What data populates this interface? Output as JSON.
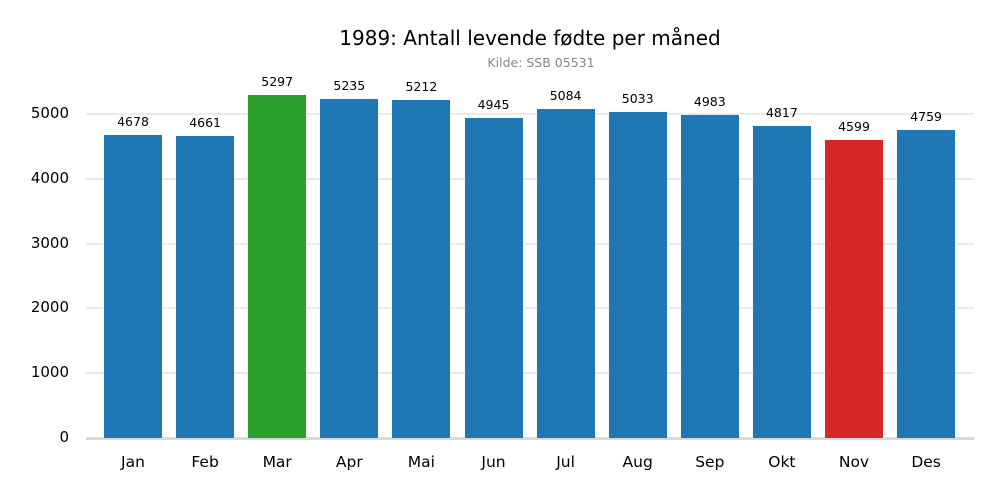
{
  "title": "1989: Antall levende fødte per måned",
  "subtitle": "Kilde: SSB 05531",
  "colors": {
    "default": "#1f77b4",
    "max": "#2ca02c",
    "min": "#d62728",
    "grid": "#ebebeb",
    "axis": "#d9d9d9",
    "subtitle": "#888888"
  },
  "yticks": [
    "0",
    "1000",
    "2000",
    "3000",
    "4000",
    "5000"
  ],
  "chart_data": {
    "type": "bar",
    "title": "1989: Antall levende fødte per måned",
    "subtitle": "Kilde: SSB 05531",
    "xlabel": "",
    "ylabel": "",
    "categories": [
      "Jan",
      "Feb",
      "Mar",
      "Apr",
      "Mai",
      "Jun",
      "Jul",
      "Aug",
      "Sep",
      "Okt",
      "Nov",
      "Des"
    ],
    "values": [
      4678,
      4661,
      5297,
      5235,
      5212,
      4945,
      5084,
      5033,
      4983,
      4817,
      4599,
      4759
    ],
    "highlight": {
      "max": "Mar",
      "min": "Nov"
    },
    "ylim": [
      0,
      5500
    ],
    "yticks": [
      0,
      1000,
      2000,
      3000,
      4000,
      5000
    ],
    "grid": "horizontal",
    "data_labels": true,
    "legend": "none"
  }
}
